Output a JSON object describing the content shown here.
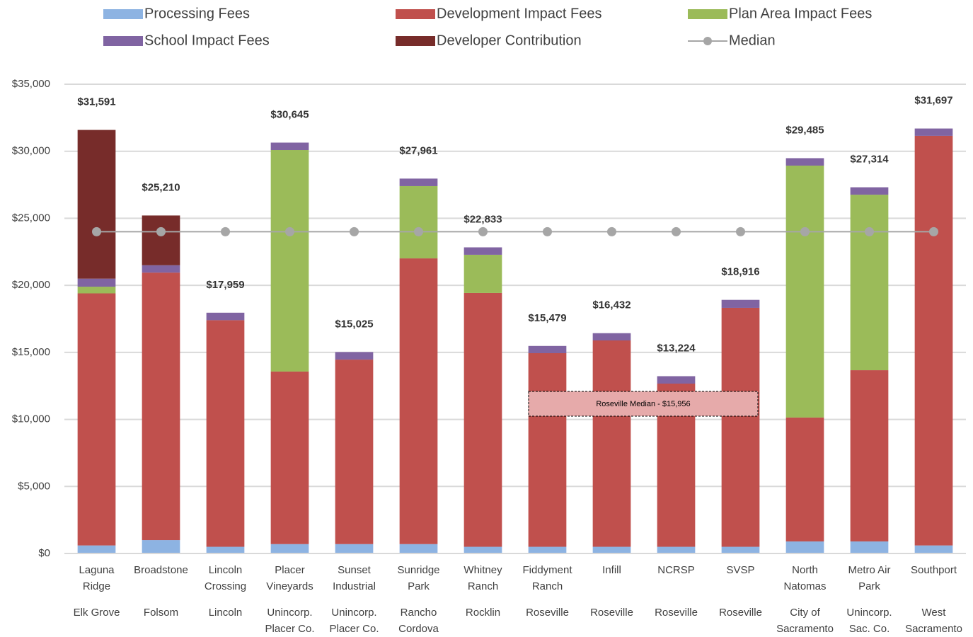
{
  "chart_data": {
    "type": "stacked-bar",
    "categories": [
      [
        "Laguna",
        "Ridge"
      ],
      [
        "Broadstone"
      ],
      [
        "Lincoln",
        "Crossing"
      ],
      [
        "Placer",
        "Vineyards"
      ],
      [
        "Sunset",
        "Industrial"
      ],
      [
        "Sunridge",
        "Park"
      ],
      [
        "Whitney",
        "Ranch"
      ],
      [
        "Fiddyment",
        "Ranch"
      ],
      [
        "Infill"
      ],
      [
        "NCRSP"
      ],
      [
        "SVSP"
      ],
      [
        "North",
        "Natomas"
      ],
      [
        "Metro Air",
        "Park"
      ],
      [
        "Southport"
      ]
    ],
    "groups": [
      [
        "Elk Grove"
      ],
      [
        "Folsom"
      ],
      [
        "Lincoln"
      ],
      [
        "Unincorp.",
        "Placer Co."
      ],
      [
        "Unincorp.",
        "Placer Co."
      ],
      [
        "Rancho",
        "Cordova"
      ],
      [
        "Rocklin"
      ],
      [
        "Roseville"
      ],
      [
        "Roseville"
      ],
      [
        "Roseville"
      ],
      [
        "Roseville"
      ],
      [
        "City of",
        "Sacramento"
      ],
      [
        "Unincorp.",
        "Sac. Co."
      ],
      [
        "West",
        "Sacramento"
      ]
    ],
    "series": [
      {
        "name": "Processing Fees",
        "color": "#8db3e2",
        "values": [
          600,
          1000,
          500,
          700,
          700,
          700,
          500,
          500,
          500,
          500,
          500,
          900,
          900,
          600
        ]
      },
      {
        "name": "Development Impact Fees",
        "color": "#c0504d",
        "values": [
          18800,
          19950,
          16900,
          12870,
          13760,
          21310,
          18930,
          14440,
          15390,
          12170,
          17820,
          9240,
          12770,
          30550
        ]
      },
      {
        "name": "Plan Area Impact Fees",
        "color": "#9bbb59",
        "values": [
          500,
          0,
          0,
          16520,
          0,
          5390,
          2850,
          0,
          0,
          0,
          0,
          18790,
          13090,
          0
        ]
      },
      {
        "name": "School Impact Fees",
        "color": "#8064a2",
        "values": [
          600,
          550,
          559,
          555,
          565,
          561,
          553,
          539,
          542,
          554,
          596,
          555,
          554,
          547
        ]
      },
      {
        "name": "Developer Contribution",
        "color": "#772c2a",
        "values": [
          11091,
          3710,
          0,
          0,
          0,
          0,
          0,
          0,
          0,
          0,
          0,
          0,
          0,
          0
        ]
      },
      {
        "name": "Median",
        "color": "#a6a6a6",
        "kind": "line",
        "values": [
          24000,
          24000,
          24000,
          24000,
          24000,
          24000,
          24000,
          24000,
          24000,
          24000,
          24000,
          24000,
          24000,
          24000
        ]
      }
    ],
    "totals": [
      31591,
      25210,
      17959,
      30645,
      15025,
      27961,
      22833,
      15479,
      16432,
      13224,
      18916,
      29485,
      27314,
      31697
    ],
    "total_labels": [
      "$31,591",
      "$25,210",
      "$17,959",
      "$30,645",
      "$15,025",
      "$27,961",
      "$22,833",
      "$15,479",
      "$16,432",
      "$13,224",
      "$18,916",
      "$29,485",
      "$27,314",
      "$31,697"
    ],
    "annotation": "Roseville Median - $15,956",
    "ylim": [
      0,
      35000
    ],
    "yticks": [
      {
        "value": 0,
        "label": "$0"
      },
      {
        "value": 5000,
        "label": "$5,000"
      },
      {
        "value": 10000,
        "label": "$10,000"
      },
      {
        "value": 15000,
        "label": "$15,000"
      },
      {
        "value": 20000,
        "label": "$20,000"
      },
      {
        "value": 25000,
        "label": "$25,000"
      },
      {
        "value": 30000,
        "label": "$30,000"
      },
      {
        "value": 35000,
        "label": "$35,000"
      }
    ],
    "grid": true,
    "legend": "top"
  }
}
